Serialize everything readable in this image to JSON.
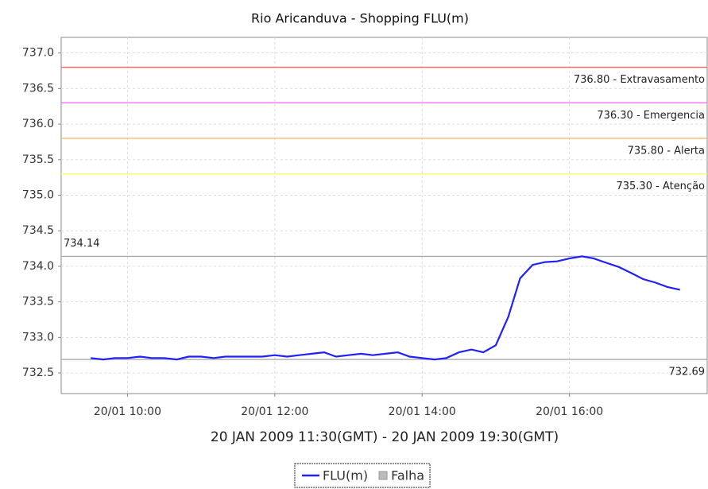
{
  "chart_data": {
    "type": "line",
    "title": "Rio Aricanduva - Shopping FLU(m)",
    "x_label": "20 JAN 2009 11:30(GMT) - 20 JAN 2009 19:30(GMT)",
    "x": [
      9.5,
      9.67,
      9.83,
      10.0,
      10.17,
      10.33,
      10.5,
      10.67,
      10.83,
      11.0,
      11.17,
      11.33,
      11.5,
      11.67,
      11.83,
      12.0,
      12.17,
      12.33,
      12.5,
      12.67,
      12.83,
      13.0,
      13.17,
      13.33,
      13.5,
      13.67,
      13.83,
      14.0,
      14.17,
      14.33,
      14.5,
      14.67,
      14.83,
      15.0,
      15.17,
      15.33,
      15.5,
      15.67,
      15.83,
      16.0,
      16.17,
      16.33,
      16.5,
      16.67,
      16.83,
      17.0,
      17.17,
      17.33,
      17.5
    ],
    "series": [
      {
        "name": "FLU(m)",
        "color": "#2020ff",
        "values": [
          732.71,
          732.69,
          732.71,
          732.71,
          732.73,
          732.71,
          732.71,
          732.69,
          732.73,
          732.73,
          732.71,
          732.73,
          732.73,
          732.73,
          732.73,
          732.75,
          732.73,
          732.75,
          732.77,
          732.79,
          732.73,
          732.75,
          732.77,
          732.75,
          732.77,
          732.79,
          732.73,
          732.71,
          732.69,
          732.71,
          732.79,
          732.83,
          732.79,
          732.89,
          733.29,
          733.83,
          734.02,
          734.06,
          734.07,
          734.11,
          734.14,
          734.11,
          734.05,
          733.99,
          733.91,
          733.82,
          733.77,
          733.71,
          733.67
        ]
      }
    ],
    "legend_extra": [
      {
        "name": "Falha",
        "color": "#bbbbbb"
      }
    ],
    "reference_lines": [
      {
        "value": 736.8,
        "label": "736.80 - Extravasamento",
        "color": "#ff6060",
        "side": "right"
      },
      {
        "value": 736.3,
        "label": "736.30 - Emergencia",
        "color": "#ff60ff",
        "side": "right"
      },
      {
        "value": 735.8,
        "label": "735.80 - Alerta",
        "color": "#ffb060",
        "side": "right"
      },
      {
        "value": 735.3,
        "label": "735.30 - Atenção",
        "color": "#ffff60",
        "side": "right"
      },
      {
        "value": 734.14,
        "label": "734.14",
        "color": "#aaaaaa",
        "side": "left"
      },
      {
        "value": 732.69,
        "label": "732.69",
        "color": "#aaaaaa",
        "side": "right"
      }
    ],
    "xlim": [
      9.1,
      17.87
    ],
    "xticks": [
      {
        "value": 10,
        "label": "20/01 10:00"
      },
      {
        "value": 12,
        "label": "20/01 12:00"
      },
      {
        "value": 14,
        "label": "20/01 14:00"
      },
      {
        "value": 16,
        "label": "20/01 16:00"
      }
    ],
    "ylim": [
      732.21,
      737.22
    ],
    "yticks": [
      {
        "value": 732.5,
        "label": "732.5"
      },
      {
        "value": 733,
        "label": "733.0"
      },
      {
        "value": 733.5,
        "label": "733.5"
      },
      {
        "value": 734,
        "label": "734.0"
      },
      {
        "value": 734.5,
        "label": "734.5"
      },
      {
        "value": 735,
        "label": "735.0"
      },
      {
        "value": 735.5,
        "label": "735.5"
      },
      {
        "value": 736,
        "label": "736.0"
      },
      {
        "value": 736.5,
        "label": "736.5"
      },
      {
        "value": 737,
        "label": "737.0"
      }
    ],
    "grid": true
  }
}
